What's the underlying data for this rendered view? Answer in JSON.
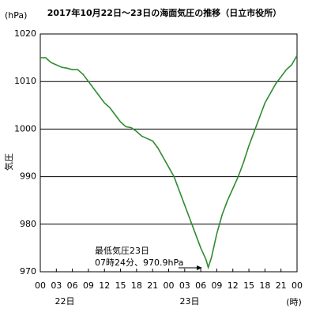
{
  "chart_data": {
    "type": "line",
    "title": "2017年10月22日～23日の海面気圧の推移（日立市役所）",
    "y_unit": "(hPa)",
    "y_label": "気圧",
    "x_unit": "(時)",
    "day_labels": [
      "22日",
      "23日"
    ],
    "annotation": [
      "最低気圧23日",
      "07時24分、970.9hPa"
    ],
    "color": "#2e8b2e",
    "x": [
      0,
      1,
      2,
      3,
      4,
      5,
      6,
      7,
      8,
      9,
      10,
      11,
      12,
      13,
      14,
      15,
      16,
      17,
      18,
      19,
      20,
      21,
      22,
      23,
      24,
      25,
      26,
      27,
      28,
      29,
      30,
      31,
      31.4,
      32,
      33,
      34,
      35,
      36,
      37,
      38,
      39,
      40,
      41,
      42,
      43,
      44,
      45,
      46,
      47,
      48
    ],
    "values": [
      1015,
      1015,
      1014,
      1013.5,
      1013,
      1012.8,
      1012.5,
      1012.5,
      1011.5,
      1010,
      1008.5,
      1007,
      1005.5,
      1004.5,
      1003,
      1001.5,
      1000.5,
      1000.3,
      999.5,
      998.5,
      998,
      997.5,
      996,
      994,
      992,
      990,
      987,
      984,
      981,
      978,
      975,
      972.5,
      970.9,
      973,
      978,
      982,
      985,
      987.5,
      990,
      993,
      996.5,
      999.5,
      1002.5,
      1005.5,
      1007.5,
      1009.5,
      1011,
      1012.5,
      1013.5,
      1015.5
    ],
    "xlim": [
      0,
      48
    ],
    "xticks": [
      {
        "value": 0,
        "label": "00"
      },
      {
        "value": 3,
        "label": "03"
      },
      {
        "value": 6,
        "label": "06"
      },
      {
        "value": 9,
        "label": "09"
      },
      {
        "value": 12,
        "label": "12"
      },
      {
        "value": 15,
        "label": "15"
      },
      {
        "value": 18,
        "label": "18"
      },
      {
        "value": 21,
        "label": "21"
      },
      {
        "value": 24,
        "label": "00"
      },
      {
        "value": 27,
        "label": "03"
      },
      {
        "value": 30,
        "label": "06"
      },
      {
        "value": 33,
        "label": "09"
      },
      {
        "value": 36,
        "label": "12"
      },
      {
        "value": 39,
        "label": "15"
      },
      {
        "value": 42,
        "label": "18"
      },
      {
        "value": 45,
        "label": "21"
      },
      {
        "value": 48,
        "label": "00"
      }
    ],
    "ylim": [
      970,
      1020
    ],
    "yticks": [
      970,
      980,
      990,
      1000,
      1010,
      1020
    ],
    "grid": true
  }
}
